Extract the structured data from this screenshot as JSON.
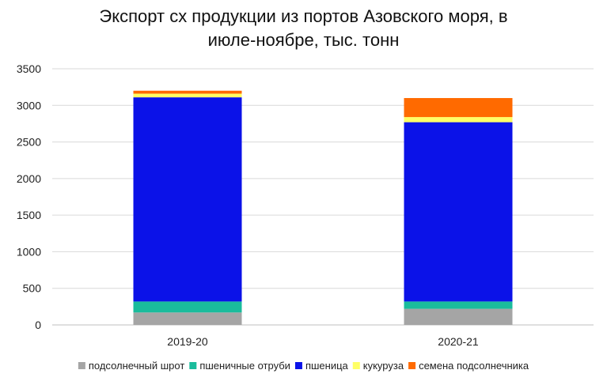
{
  "chart_data": {
    "type": "bar",
    "stacked": true,
    "title": "Экспорт сх продукции из портов Азовского моря, в июле-ноябре, тыс. тонн",
    "categories": [
      "2019-20",
      "2020-21"
    ],
    "series": [
      {
        "name": "подсолнечный шрот",
        "color": "#A5A5A5",
        "values": [
          170,
          220
        ]
      },
      {
        "name": "пшеничные отруби",
        "color": "#1ABC9C",
        "values": [
          150,
          100
        ]
      },
      {
        "name": "пшеница",
        "color": "#0B12E8",
        "values": [
          2790,
          2450
        ]
      },
      {
        "name": "кукуруза",
        "color": "#FFFF66",
        "values": [
          50,
          70
        ]
      },
      {
        "name": "семена подсолнечника",
        "color": "#FF6A00",
        "values": [
          40,
          260
        ]
      }
    ],
    "y_ticks": [
      "0",
      "500",
      "1000",
      "1500",
      "2000",
      "2500",
      "3000",
      "3500"
    ],
    "ylim": [
      0,
      3500
    ],
    "grid": true,
    "legend_position": "bottom"
  }
}
